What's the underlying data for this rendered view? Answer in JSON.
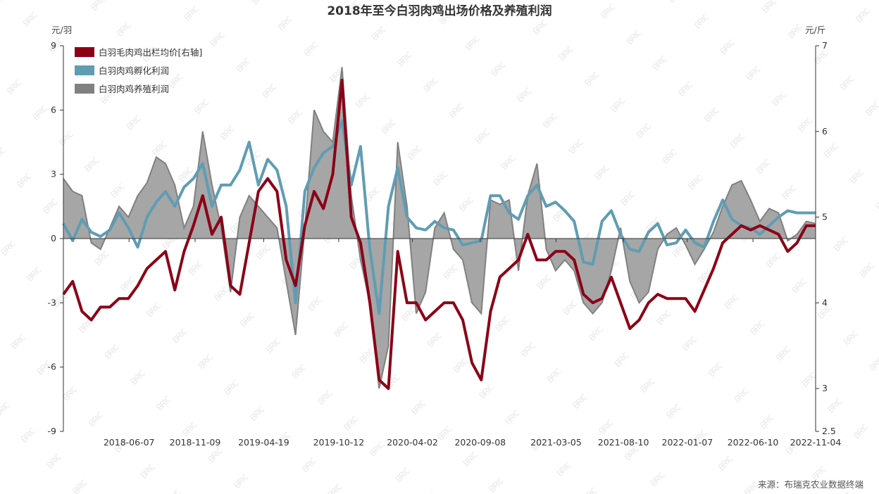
{
  "chart_data": {
    "type": "line",
    "title": "2018年至今白羽肉鸡出场价格及养殖利润",
    "ylabel_left": "元/羽",
    "ylabel_right": "元/斤",
    "ylim_left": [
      -9,
      9
    ],
    "ylim_right": [
      2.5,
      7
    ],
    "yticks_left": [
      "9",
      "6",
      "3",
      "0",
      "-3",
      "-6",
      "-9"
    ],
    "yticks_right": [
      "7",
      "6",
      "5",
      "4",
      "3",
      "2.5"
    ],
    "x_range": [
      "2018-01-04",
      "2022-11-04"
    ],
    "xticks": [
      "2018-06-07",
      "2018-11-09",
      "2019-04-19",
      "2019-10-12",
      "2020-04-02",
      "2020-09-08",
      "2021-03-05",
      "2021-08-10",
      "2022-01-07",
      "2022-06-10",
      "2022-11-04"
    ],
    "legend_position": "top-left",
    "grid": false,
    "series": [
      {
        "name": "白羽毛肉鸡出栏均价[右轴]",
        "axis": "right",
        "kind": "line",
        "color": "#8c0016",
        "values": [
          4.1,
          4.25,
          3.9,
          3.8,
          3.95,
          3.95,
          4.05,
          4.05,
          4.2,
          4.4,
          4.5,
          4.6,
          4.15,
          4.6,
          4.9,
          5.25,
          4.8,
          5.0,
          4.2,
          4.1,
          4.7,
          5.3,
          5.45,
          5.3,
          4.5,
          4.2,
          4.9,
          5.3,
          5.1,
          5.5,
          6.6,
          5.0,
          4.7,
          4.0,
          3.1,
          3.0,
          4.6,
          4.0,
          4.0,
          3.8,
          3.9,
          4.0,
          4.0,
          3.8,
          3.3,
          3.1,
          3.9,
          4.3,
          4.4,
          4.5,
          4.8,
          4.5,
          4.5,
          4.6,
          4.6,
          4.5,
          4.1,
          4.0,
          4.05,
          4.3,
          4.0,
          3.7,
          3.8,
          4.0,
          4.1,
          4.05,
          4.05,
          4.05,
          3.9,
          4.15,
          4.4,
          4.7,
          4.8,
          4.9,
          4.85,
          4.9,
          4.85,
          4.8,
          4.6,
          4.7,
          4.9,
          4.9
        ]
      },
      {
        "name": "白羽肉鸡孵化利润",
        "axis": "left",
        "kind": "line",
        "color": "#5f9db3",
        "values": [
          0.7,
          -0.1,
          0.9,
          0.3,
          0.1,
          0.4,
          1.2,
          0.5,
          -0.4,
          1.0,
          1.7,
          2.2,
          1.5,
          2.4,
          2.8,
          3.5,
          1.5,
          2.5,
          2.5,
          3.2,
          4.5,
          2.5,
          3.7,
          3.2,
          1.5,
          -3.0,
          2.2,
          3.3,
          4.0,
          4.3,
          5.5,
          2.5,
          4.3,
          -0.5,
          -3.5,
          1.5,
          3.3,
          1.0,
          0.5,
          0.4,
          0.8,
          0.5,
          0.4,
          -0.3,
          -0.2,
          -0.1,
          2.0,
          2.0,
          1.2,
          0.9,
          2.0,
          2.5,
          1.5,
          1.7,
          1.3,
          0.8,
          -1.1,
          -1.2,
          0.8,
          1.3,
          0.2,
          -0.5,
          -0.6,
          0.3,
          0.7,
          -0.3,
          -0.2,
          0.4,
          -0.2,
          -0.4,
          0.8,
          1.8,
          0.9,
          0.6,
          0.5,
          0.2,
          0.6,
          1.0,
          1.3,
          1.2,
          1.2,
          1.2
        ]
      },
      {
        "name": "白羽肉鸡养殖利润",
        "axis": "left",
        "kind": "area",
        "color": "#808080",
        "fill": "#a6a6a6",
        "values": [
          2.8,
          2.2,
          2.0,
          -0.2,
          -0.5,
          0.5,
          1.5,
          1.0,
          2.0,
          2.6,
          3.8,
          3.5,
          2.5,
          0.5,
          1.5,
          5.0,
          2.5,
          0.5,
          -2.5,
          1.0,
          2.0,
          1.5,
          1.0,
          0.5,
          -2.0,
          -4.5,
          0.5,
          6.0,
          5.0,
          4.5,
          8.0,
          2.0,
          -1.0,
          -3.0,
          -7.0,
          -5.0,
          4.5,
          1.5,
          -3.5,
          -2.5,
          0.5,
          1.2,
          -0.5,
          -1.0,
          -3.0,
          -3.5,
          1.8,
          1.6,
          1.8,
          -1.5,
          2.0,
          3.5,
          -0.5,
          -1.5,
          -1.0,
          -1.5,
          -3.0,
          -3.5,
          -3.0,
          -1.5,
          0.5,
          -2.0,
          -3.0,
          -2.5,
          -0.5,
          0.2,
          0.5,
          -0.3,
          -1.2,
          -0.5,
          0.3,
          1.5,
          2.5,
          2.7,
          1.8,
          0.8,
          1.4,
          1.2,
          -0.1,
          0.2,
          0.8,
          0.7
        ]
      }
    ]
  },
  "watermark": "BRIC",
  "source": "来源：布瑞克农业数据终端"
}
